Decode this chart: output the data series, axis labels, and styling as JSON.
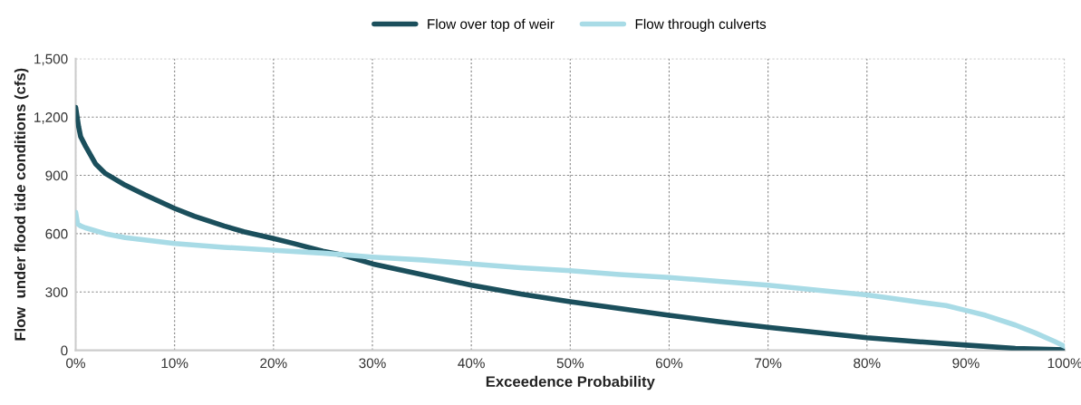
{
  "chart_data": {
    "type": "line",
    "xlabel": "Exceedence Probability",
    "ylabel": "Flow  under flood tide conditions (cfs)",
    "xlim": [
      0,
      100
    ],
    "ylim": [
      0,
      1500
    ],
    "xticks": [
      {
        "value": 0,
        "label": "0%"
      },
      {
        "value": 10,
        "label": "10%"
      },
      {
        "value": 20,
        "label": "20%"
      },
      {
        "value": 30,
        "label": "30%"
      },
      {
        "value": 40,
        "label": "40%"
      },
      {
        "value": 50,
        "label": "50%"
      },
      {
        "value": 60,
        "label": "60%"
      },
      {
        "value": 70,
        "label": "70%"
      },
      {
        "value": 80,
        "label": "80%"
      },
      {
        "value": 90,
        "label": "90%"
      },
      {
        "value": 100,
        "label": "100%"
      }
    ],
    "yticks": [
      0,
      300,
      600,
      900,
      {
        "value": 1200,
        "label": "1,200"
      },
      {
        "value": 1500,
        "label": "1,500"
      }
    ],
    "grid": true,
    "legend": "top",
    "marker": "none",
    "line_style": "solid",
    "series": [
      {
        "name": "Flow over top of weir",
        "color": "#1b4f5c",
        "x": [
          0,
          0.3,
          0.5,
          1,
          2,
          3,
          5,
          7,
          10,
          12,
          15,
          17,
          20,
          22,
          25,
          27,
          30,
          35,
          40,
          45,
          50,
          55,
          60,
          65,
          70,
          75,
          80,
          85,
          90,
          95,
          100
        ],
        "values": [
          1250,
          1150,
          1100,
          1050,
          960,
          910,
          850,
          800,
          730,
          690,
          640,
          610,
          575,
          550,
          510,
          490,
          445,
          390,
          335,
          290,
          250,
          215,
          180,
          148,
          118,
          92,
          65,
          45,
          27,
          10,
          3
        ]
      },
      {
        "name": "Flow through culverts",
        "color": "#a8dbe6",
        "x": [
          0,
          0.2,
          0.5,
          1,
          3,
          5,
          10,
          15,
          20,
          25,
          30,
          35,
          40,
          45,
          50,
          55,
          60,
          65,
          70,
          75,
          80,
          85,
          88,
          90,
          92,
          95,
          97,
          99,
          100
        ],
        "values": [
          710,
          650,
          640,
          630,
          600,
          580,
          550,
          530,
          515,
          500,
          480,
          465,
          445,
          425,
          410,
          390,
          375,
          355,
          335,
          310,
          285,
          250,
          230,
          205,
          180,
          130,
          90,
          45,
          20
        ]
      }
    ]
  }
}
